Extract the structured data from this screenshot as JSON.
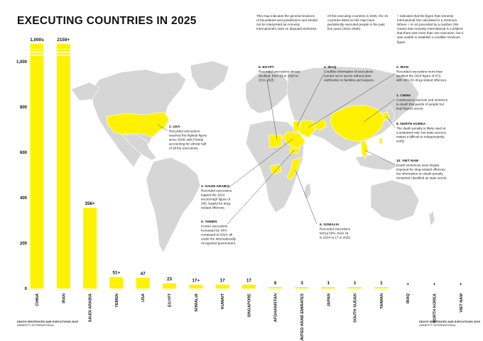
{
  "header": {
    "title": "EXECUTING COUNTRIES IN 2025",
    "notes": [
      "This map indicates the general locations of boundaries and jurisdictions and should not be interpreted as Amnesty International's view on disputed territories.",
      "Of the executing countries in 2025, the 10 countries listed on the map have persistently executed people in the past five years (2021-2025).",
      "+ indicates that the figure that Amnesty International has calculated is a minimum. Where + is not preceded by a number, this means that Amnesty International is confident that there was more than one execution, but it was unable to establish a credible minimum figure."
    ]
  },
  "footer": {
    "left_line1": "DEATH SENTENCES AND EXECUTIONS 2025",
    "left_line2": "AMNESTY INTERNATIONAL",
    "right_line1": "DEATH SENTENCES AND EXECUTIONS 2025",
    "right_line2": "AMNESTY INTERNATIONAL"
  },
  "annotations": [
    {
      "head": "6. EGYPT",
      "body": [
        "Recorded executions almost",
        "doubled, from 13 in 2024 to",
        "23 in 2025."
      ]
    },
    {
      "head": "4. IRAQ",
      "body": [
        "Credible information of executions",
        "carried out in secret without prior",
        "notification to families and lawyers."
      ]
    },
    {
      "head": "2. IRAN",
      "body": [
        "Recorded executions more than",
        "doubled the 2024 figure of 972,",
        "with 46% for drug-related offences."
      ]
    },
    {
      "head": "1. CHINA",
      "body": [
        "Continued to execute and sentence",
        "to death thousands of people but",
        "kept figures secret."
      ]
    },
    {
      "head": "8. NORTH KOREA",
      "body": [
        "The death penalty is likely used at",
        "a sustained rate, but state secrecy",
        "makes it difficult to independently",
        "verify."
      ]
    },
    {
      "head": "10. VIET NAM",
      "body": [
        "Death sentences were largely",
        "imposed for drug-related offences,",
        "but information on death penalty",
        "remained classified as state secret."
      ]
    },
    {
      "head": "2. USA",
      "body": [
        "Recorded executions",
        "reached the highest figure",
        "since 2009, with Florida",
        "accounting for almost half",
        "of all the executions."
      ]
    },
    {
      "head": "3. SAUDI ARABIA",
      "body": [
        "Recorded executions",
        "topped the 2024",
        "record-high figure of",
        "345, largely for drug-",
        "related offences."
      ]
    },
    {
      "head": "5. YEMEN",
      "body": [
        "Known executions",
        "increased by 34%",
        "compared to 2024, all",
        "under the internationally",
        "recognized government."
      ]
    },
    {
      "head": "6. SOMALIA",
      "body": [
        "Recorded executions",
        "fell by 50%, from 34",
        "in 2024 to 17 in 2025."
      ]
    }
  ],
  "chart_data": {
    "type": "bar",
    "title": "EXECUTING COUNTRIES IN 2025",
    "xlabel": "",
    "ylabel": "",
    "ylim": [
      0,
      1000
    ],
    "yticks": [
      0,
      200,
      400,
      600,
      800,
      "1,000"
    ],
    "grid": false,
    "categories": [
      "CHINA",
      "IRAN",
      "SAUDI ARABIA",
      "YEMEN",
      "USA",
      "EGYPT",
      "SOMALIA",
      "KUWAIT",
      "SINGAPORE",
      "AFGHANISTAN",
      "UNITED ARAB EMIRATES",
      "JAPAN",
      "SOUTH SUDAN",
      "TAIWAN",
      "IRAQ",
      "NORTH KOREA",
      "VIET NAM"
    ],
    "values": [
      1000,
      2159,
      356,
      51,
      47,
      23,
      17,
      17,
      17,
      6,
      3,
      1,
      1,
      1,
      0,
      0,
      0
    ],
    "data_labels": [
      "1,000s",
      "2159+",
      "356+",
      "51+",
      "47",
      "23",
      "17+",
      "17",
      "17",
      "6",
      "3",
      "1",
      "1",
      "1",
      "+",
      "+",
      "+"
    ],
    "bar_color": "#FFF200",
    "map_highlight_color": "#FFF200",
    "map_land_color": "#D6D6D6"
  }
}
